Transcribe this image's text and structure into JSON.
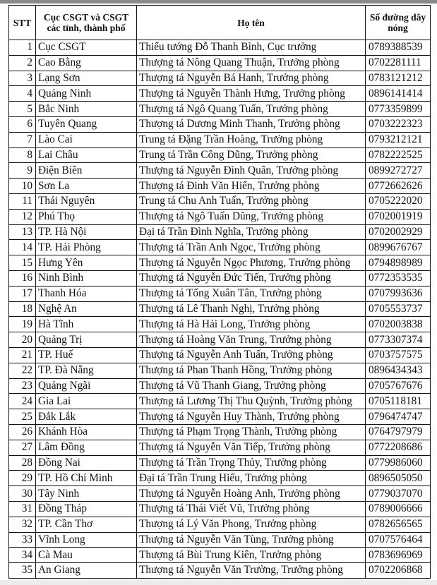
{
  "headers": {
    "stt": "STT",
    "unit": "Cục CSGT và CSGT các tỉnh, thành phố",
    "name": "Họ tên",
    "phone": "Số đường dây nóng"
  },
  "rows": [
    {
      "stt": "1",
      "unit": "Cục CSGT",
      "name": "Thiếu tướng Đỗ Thanh Bình, Cục trưởng",
      "phone": "0789388539"
    },
    {
      "stt": "2",
      "unit": "Cao Bằng",
      "name": "Thượng tá Nông Quang Thuận, Trưởng phòng",
      "phone": "0702281111"
    },
    {
      "stt": "3",
      "unit": "Lạng Sơn",
      "name": "Thượng tá Nguyễn Bá Hanh, Trưởng phòng",
      "phone": "0783121212"
    },
    {
      "stt": "4",
      "unit": "Quảng Ninh",
      "name": "Thượng tá Nguyễn Thành Hưng, Trưởng phòng",
      "phone": "0896141414"
    },
    {
      "stt": "5",
      "unit": "Bắc Ninh",
      "name": "Thượng tá Ngô Quang Tuấn, Trưởng phòng",
      "phone": "0773359899"
    },
    {
      "stt": "6",
      "unit": "Tuyên Quang",
      "name": "Thượng tá Dương Minh Thanh, Trưởng phòng",
      "phone": "0703222323"
    },
    {
      "stt": "7",
      "unit": "Lào Cai",
      "name": "Trung tá Đặng Trần Hoàng, Trưởng phòng",
      "phone": "0793212121"
    },
    {
      "stt": "8",
      "unit": "Lai Châu",
      "name": "Trung tá Trần Công Dũng, Trưởng phòng",
      "phone": "0782222525"
    },
    {
      "stt": "9",
      "unit": "Điện Biên",
      "name": "Thượng tá Nguyễn Đình Quân, Trưởng phòng",
      "phone": "0899272727"
    },
    {
      "stt": "10",
      "unit": "Sơn La",
      "name": "Thượng tá Đinh Văn Hiến, Trưởng phòng",
      "phone": "0772662626"
    },
    {
      "stt": "11",
      "unit": "Thái Nguyên",
      "name": "Trung tá Chu Anh Tuấn, Trưởng phòng",
      "phone": "0705222020"
    },
    {
      "stt": "12",
      "unit": "Phú Thọ",
      "name": "Thượng tá Ngô Tuấn Dũng, Trưởng phòng",
      "phone": "0702001919"
    },
    {
      "stt": "13",
      "unit": "TP. Hà Nội",
      "name": "Đại tá Trần Đình Nghĩa, Trưởng phòng",
      "phone": "0702002929"
    },
    {
      "stt": "14",
      "unit": "TP. Hải Phòng",
      "name": "Thượng tá Trần Anh Ngọc, Trưởng phòng",
      "phone": "0899676767"
    },
    {
      "stt": "15",
      "unit": "Hưng Yên",
      "name": "Thượng tá Nguyễn Ngọc Phương, Trưởng phòng",
      "phone": "0794898989"
    },
    {
      "stt": "16",
      "unit": "Ninh Bình",
      "name": "Thượng tá Nguyễn Đức Tiến, Trưởng phòng",
      "phone": "0772353535"
    },
    {
      "stt": "17",
      "unit": "Thanh Hóa",
      "name": "Thượng tá Tống Xuân Tân, Trưởng phòng",
      "phone": "0707993636"
    },
    {
      "stt": "18",
      "unit": "Nghệ An",
      "name": "Thượng tá Lê Thanh Nghị, Trưởng phòng",
      "phone": "0705553737"
    },
    {
      "stt": "19",
      "unit": "Hà Tĩnh",
      "name": "Thượng tá Hà Hải Long, Trưởng phòng",
      "phone": "0702003838"
    },
    {
      "stt": "20",
      "unit": "Quảng Trị",
      "name": "Thượng tá Hoàng Văn Trung, Trưởng phòng",
      "phone": "0773307374"
    },
    {
      "stt": "21",
      "unit": "TP. Huế",
      "name": "Thượng tá Nguyễn Anh Tuấn, Trưởng phòng",
      "phone": "0703757575"
    },
    {
      "stt": "22",
      "unit": "TP. Đà Nẵng",
      "name": "Thượng tá Phan Thanh Hồng, Trưởng phòng",
      "phone": "0896434343"
    },
    {
      "stt": "23",
      "unit": "Quảng Ngãi",
      "name": "Thượng tá Vũ Thanh Giang, Trưởng phòng",
      "phone": "0705767676"
    },
    {
      "stt": "24",
      "unit": "Gia Lai",
      "name": "Thượng tá Lương Thị Thu Quỳnh, Trưởng phòng",
      "phone": "0705118181"
    },
    {
      "stt": "25",
      "unit": "Đắk Lắk",
      "name": "Thượng tá Nguyễn Huy Thành, Trưởng phòng",
      "phone": "0796474747"
    },
    {
      "stt": "26",
      "unit": "Khánh Hòa",
      "name": "Thượng tá Phạm Trọng Thành, Trưởng phòng",
      "phone": "0764797979"
    },
    {
      "stt": "27",
      "unit": "Lâm Đồng",
      "name": "Thượng tá Nguyễn Văn Tiếp, Trưởng phòng",
      "phone": "0772208686"
    },
    {
      "stt": "28",
      "unit": "Đồng Nai",
      "name": "Thượng tá Trần Trọng Thủy, Trưởng phòng",
      "phone": "0779986060"
    },
    {
      "stt": "29",
      "unit": "TP. Hồ Chí Minh",
      "name": "Đại tá Trần Trung Hiếu, Trưởng phòng",
      "phone": "0896505050"
    },
    {
      "stt": "30",
      "unit": "Tây Ninh",
      "name": "Thượng tá Nguyễn Hoàng Anh, Trưởng phòng",
      "phone": "0779037070"
    },
    {
      "stt": "31",
      "unit": "Đồng Tháp",
      "name": "Thượng tá Thái Viết Vũ, Trưởng phòng",
      "phone": "0789006666"
    },
    {
      "stt": "32",
      "unit": "TP. Cần Thơ",
      "name": "Thượng tá Lý Văn Phong, Trưởng phòng",
      "phone": "0782656565"
    },
    {
      "stt": "33",
      "unit": "Vĩnh Long",
      "name": "Thượng tá Nguyễn Văn Tùng, Trưởng phòng",
      "phone": "0707576464"
    },
    {
      "stt": "34",
      "unit": "Cà Mau",
      "name": "Thượng tá Bùi Trung Kiên, Trưởng phòng",
      "phone": "0783696969"
    },
    {
      "stt": "35",
      "unit": "An Giang",
      "name": "Thượng tá Nguyễn Văn Trường, Trưởng phòng",
      "phone": "0702206868"
    }
  ]
}
